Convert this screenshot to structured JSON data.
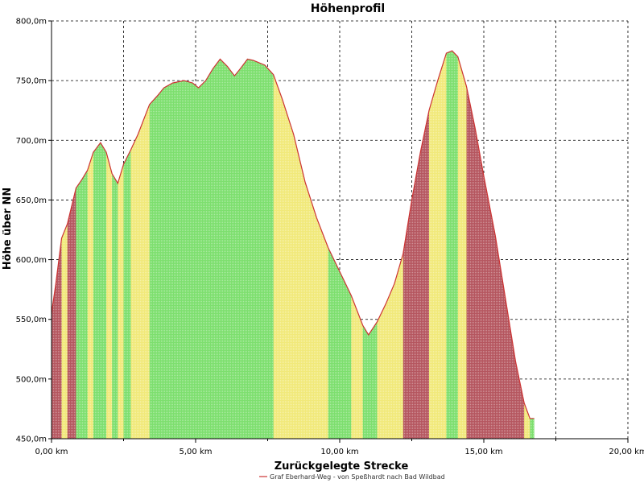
{
  "chart_data": {
    "type": "area",
    "title": "Höhenprofil",
    "xlabel": "Zurückgelegte Strecke",
    "ylabel": "Höhe über NN",
    "xlim": [
      0,
      20
    ],
    "ylim": [
      450,
      800
    ],
    "x_unit": "km",
    "y_unit": "m",
    "grid": true,
    "legend_position": "bottom-center",
    "x_ticks": [
      "0,00 km",
      "5,00 km",
      "10,00 km",
      "15,00 km",
      "20,00 km"
    ],
    "y_ticks": [
      "450,0m",
      "500,0m",
      "550,0m",
      "600,0m",
      "650,0m",
      "700,0m",
      "750,0m",
      "800,0m"
    ],
    "series": [
      {
        "name": "Graf Eberhard-Weg - von Speßhardt nach Bad Wildbad",
        "color": "#cc3333",
        "x": [
          0.0,
          0.15,
          0.35,
          0.55,
          0.85,
          1.05,
          1.25,
          1.45,
          1.7,
          1.9,
          2.1,
          2.3,
          2.5,
          2.75,
          3.0,
          3.4,
          3.7,
          3.9,
          4.2,
          4.6,
          4.9,
          5.1,
          5.35,
          5.6,
          5.85,
          6.1,
          6.35,
          6.55,
          6.8,
          7.0,
          7.4,
          7.7,
          8.0,
          8.4,
          8.8,
          9.2,
          9.6,
          10.0,
          10.4,
          10.8,
          11.0,
          11.3,
          11.6,
          11.9,
          12.2,
          12.5,
          12.8,
          13.1,
          13.4,
          13.7,
          13.9,
          14.1,
          14.4,
          14.7,
          15.0,
          15.4,
          15.8,
          16.1,
          16.4,
          16.6,
          16.75
        ],
        "y": [
          555,
          580,
          618,
          630,
          660,
          667,
          675,
          690,
          698,
          690,
          672,
          664,
          680,
          692,
          705,
          730,
          738,
          744,
          748,
          750,
          748,
          744,
          750,
          760,
          768,
          762,
          754,
          760,
          768,
          767,
          763,
          755,
          735,
          705,
          665,
          635,
          610,
          590,
          570,
          545,
          537,
          548,
          563,
          580,
          605,
          650,
          690,
          725,
          750,
          773,
          775,
          770,
          745,
          710,
          670,
          620,
          560,
          515,
          480,
          467,
          467
        ]
      }
    ],
    "colors": {
      "low_gradient": "#7ddf6e",
      "mid_gradient": "#f1e97a",
      "high_gradient": "#b5565f",
      "outline": "#cc3333"
    }
  }
}
